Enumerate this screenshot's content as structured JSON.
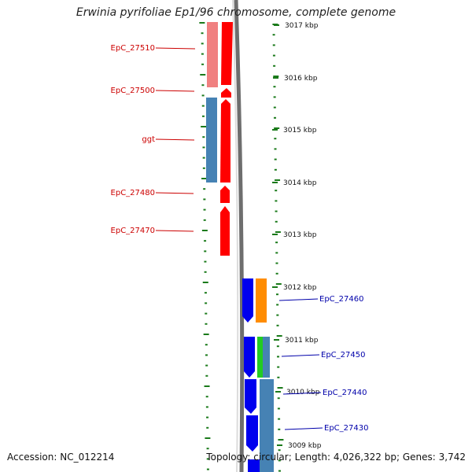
{
  "title": "Erwinia pyrifoliae Ep1/96 chromosome, complete genome",
  "footer": {
    "accession_label": "Accession:",
    "accession": "NC_012214",
    "topology_label": "Topology:",
    "topology": "circular",
    "length_label": "Length:",
    "length": "4,026,322 bp",
    "genes_label": "Genes:",
    "genes": "3,742"
  },
  "colors": {
    "forward_gene": "#ff0000",
    "forward_gene_light": "#f08080",
    "reverse_gene": "#0000ff",
    "steel_gene": "#4682b4",
    "orange_gene": "#ff8c00",
    "green_gene": "#22cc22",
    "label_forward": "#cc0000",
    "label_reverse": "#0000aa",
    "tick": "#1a7a1a",
    "backbone": "#808080"
  },
  "scale_ticks": [
    {
      "label": "3017 kbp",
      "kbp": 3017
    },
    {
      "label": "3016 kbp",
      "kbp": 3016
    },
    {
      "label": "3015 kbp",
      "kbp": 3015
    },
    {
      "label": "3014 kbp",
      "kbp": 3014
    },
    {
      "label": "3013 kbp",
      "kbp": 3013
    },
    {
      "label": "3012 kbp",
      "kbp": 3012
    },
    {
      "label": "3011 kbp",
      "kbp": 3011
    },
    {
      "label": "3010 kbp",
      "kbp": 3010
    },
    {
      "label": "3009 kbp",
      "kbp": 3009
    }
  ],
  "gene_labels_left": [
    {
      "name": "EpC_27510"
    },
    {
      "name": "EpC_27500"
    },
    {
      "name": "ggt"
    },
    {
      "name": "EpC_27480"
    },
    {
      "name": "EpC_27470"
    }
  ],
  "gene_labels_right": [
    {
      "name": "EpC_27460"
    },
    {
      "name": "EpC_27450"
    },
    {
      "name": "EpC_27440"
    },
    {
      "name": "EpC_27430"
    }
  ]
}
